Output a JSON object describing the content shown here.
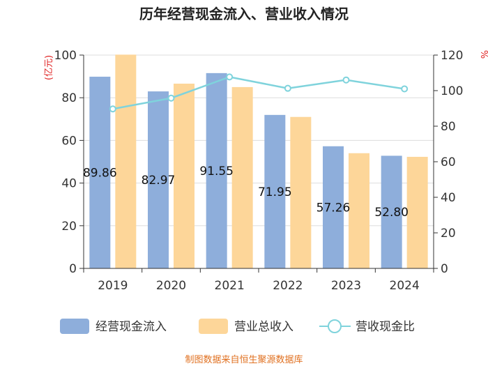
{
  "chart_data": {
    "type": "bar",
    "title": "历年经营现金流入、营业收入情况",
    "categories": [
      "2019",
      "2020",
      "2021",
      "2022",
      "2023",
      "2024"
    ],
    "y_left": {
      "label": "(亿元)",
      "min": 0,
      "max": 100,
      "ticks": [
        0,
        20,
        40,
        60,
        80,
        100
      ]
    },
    "y_right": {
      "label": "%",
      "min": 0,
      "max": 120,
      "ticks": [
        0,
        20,
        40,
        60,
        80,
        100,
        120
      ]
    },
    "series": [
      {
        "name": "经营现金流入",
        "kind": "bar",
        "axis": "left",
        "color": "#8eaedb",
        "values": [
          89.86,
          82.97,
          91.55,
          71.95,
          57.26,
          52.8
        ],
        "labels": [
          "89.86",
          "82.97",
          "91.55",
          "71.95",
          "57.26",
          "52.80"
        ]
      },
      {
        "name": "营业总收入",
        "kind": "bar",
        "axis": "left",
        "color": "#fdd699",
        "values": [
          100.2,
          86.6,
          85.0,
          71.0,
          54.0,
          52.3
        ]
      },
      {
        "name": "营收现金比",
        "kind": "line",
        "axis": "right",
        "color": "#7fd3dc",
        "values": [
          89.7,
          95.8,
          107.7,
          101.3,
          106.0,
          101.0
        ]
      }
    ],
    "legend_position": "bottom",
    "grid": true
  },
  "footer": {
    "source": "制图数据来自恒生聚源数据库"
  }
}
